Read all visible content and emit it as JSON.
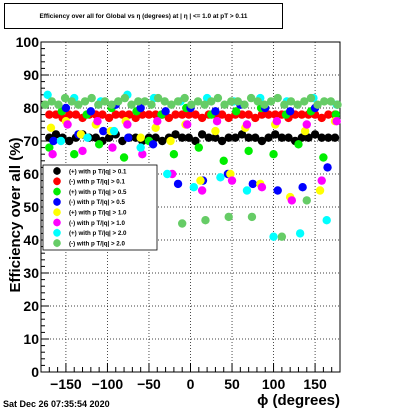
{
  "title": "Efficiency over all for Global vs η (degrees) at | η | <= 1.0 at pT > 0.11",
  "timestamp": "Sat Dec 26 07:35:54 2020",
  "colors": {
    "s1": "#000000",
    "s2": "#ff0000",
    "s3": "#00ee00",
    "s4": "#0000ff",
    "s5": "#ffff00",
    "s6": "#ff00ff",
    "s7": "#00ffff",
    "s8": "#66cc66"
  },
  "chart_data": {
    "type": "scatter",
    "title": "Efficiency over all for Global vs η (degrees) at | η | <= 1.0 at pT > 0.11",
    "xlabel": "ϕ (degrees)",
    "ylabel": "Efficiency over all (%)",
    "xlim": [
      -180,
      180
    ],
    "ylim": [
      0,
      100
    ],
    "xticks": [
      "−150",
      "−100",
      "−50",
      "0",
      "50",
      "100",
      "150"
    ],
    "yticks": [
      "0",
      "10",
      "20",
      "30",
      "40",
      "50",
      "60",
      "70",
      "80",
      "90",
      "100"
    ],
    "grid": true,
    "legend_position": "middle-left",
    "series": [
      {
        "name": "(+) with p T/|q| > 0.1",
        "color": "#000000",
        "x": [
          -170,
          -162,
          -154,
          -146,
          -138,
          -130,
          -122,
          -114,
          -106,
          -98,
          -90,
          -82,
          -74,
          -66,
          -58,
          -50,
          -42,
          -34,
          -26,
          -18,
          -10,
          -2,
          6,
          14,
          22,
          30,
          38,
          46,
          54,
          62,
          70,
          78,
          86,
          94,
          102,
          110,
          118,
          126,
          134,
          142,
          150,
          158,
          166,
          174
        ],
        "y": [
          71,
          72,
          71,
          70,
          71,
          72,
          71,
          71,
          70,
          71,
          72,
          70,
          71,
          71,
          70,
          71,
          71,
          70,
          71,
          72,
          71,
          71,
          70,
          72,
          71,
          71,
          70,
          71,
          71,
          72,
          71,
          71,
          70,
          71,
          72,
          71,
          71,
          70,
          71,
          71,
          72,
          71,
          71,
          71
        ]
      },
      {
        "name": "(-) with p T/|q| > 0.1",
        "color": "#ff0000",
        "x": [
          -170,
          -162,
          -154,
          -146,
          -138,
          -130,
          -122,
          -114,
          -106,
          -98,
          -90,
          -82,
          -74,
          -66,
          -58,
          -50,
          -42,
          -34,
          -26,
          -18,
          -10,
          -2,
          6,
          14,
          22,
          30,
          38,
          46,
          54,
          62,
          70,
          78,
          86,
          94,
          102,
          110,
          118,
          126,
          134,
          142,
          150,
          158,
          166,
          174
        ],
        "y": [
          78,
          78,
          77,
          78,
          78,
          77,
          78,
          78,
          78,
          77,
          78,
          78,
          78,
          77,
          78,
          78,
          78,
          78,
          77,
          78,
          78,
          78,
          78,
          77,
          78,
          78,
          78,
          77,
          78,
          78,
          78,
          77,
          78,
          78,
          78,
          78,
          77,
          78,
          78,
          78,
          78,
          77,
          78,
          78
        ]
      },
      {
        "name": "(+) with p T/|q| > 0.5",
        "color": "#00ee00",
        "x": [
          -170,
          -155,
          -140,
          -125,
          -110,
          -95,
          -80,
          -65,
          -50,
          -35,
          -20,
          -5,
          10,
          25,
          40,
          55,
          70,
          85,
          100,
          115,
          130,
          145,
          160,
          175
        ],
        "y": [
          68,
          79,
          66,
          78,
          69,
          80,
          65,
          79,
          70,
          78,
          66,
          80,
          68,
          78,
          64,
          79,
          67,
          80,
          66,
          78,
          69,
          79,
          65,
          78
        ]
      },
      {
        "name": "(-) with p T/|q| > 0.5",
        "color": "#0000ff",
        "x": [
          -165,
          -150,
          -135,
          -120,
          -105,
          -90,
          -75,
          -60,
          -45,
          -30,
          -15,
          0,
          15,
          30,
          45,
          60,
          75,
          90,
          105,
          120,
          135,
          150,
          165
        ],
        "y": [
          70,
          80,
          72,
          79,
          73,
          81,
          71,
          80,
          69,
          79,
          57,
          80,
          58,
          79,
          60,
          81,
          57,
          80,
          55,
          79,
          56,
          80,
          62
        ]
      },
      {
        "name": "(+) with p T/|q| > 1.0",
        "color": "#ffff00",
        "x": [
          -168,
          -150,
          -132,
          -114,
          -96,
          -78,
          -60,
          -42,
          -24,
          -6,
          12,
          30,
          48,
          66,
          84,
          102,
          120,
          138,
          156,
          174
        ],
        "y": [
          74,
          76,
          72,
          75,
          73,
          76,
          71,
          74,
          70,
          75,
          58,
          73,
          60,
          74,
          57,
          75,
          53,
          73,
          55,
          76
        ]
      },
      {
        "name": "(-) with p T/|q| > 1.0",
        "color": "#ff00ff",
        "x": [
          -166,
          -148,
          -130,
          -112,
          -94,
          -76,
          -58,
          -40,
          -22,
          -4,
          14,
          32,
          50,
          68,
          86,
          104,
          122,
          140,
          158,
          176
        ],
        "y": [
          66,
          75,
          67,
          76,
          68,
          75,
          66,
          76,
          60,
          75,
          55,
          76,
          58,
          75,
          56,
          76,
          52,
          75,
          58,
          76
        ]
      },
      {
        "name": "(+) with p T/|q| > 2.0",
        "color": "#00ffff",
        "x": [
          -172,
          -156,
          -140,
          -124,
          -108,
          -92,
          -76,
          -60,
          -44,
          -28,
          -12,
          4,
          20,
          36,
          52,
          68,
          84,
          100,
          116,
          132,
          148,
          164,
          176
        ],
        "y": [
          84,
          70,
          83,
          71,
          82,
          73,
          84,
          68,
          83,
          60,
          82,
          56,
          83,
          59,
          82,
          55,
          83,
          41,
          82,
          42,
          83,
          46,
          81
        ]
      },
      {
        "name": "(-) with p T/|q| > 2.0",
        "color": "#66cc66",
        "x": [
          -175,
          -167,
          -159,
          -151,
          -143,
          -135,
          -127,
          -119,
          -111,
          -103,
          -95,
          -87,
          -79,
          -71,
          -63,
          -55,
          -47,
          -39,
          -31,
          -23,
          -15,
          -7,
          1,
          9,
          17,
          25,
          33,
          41,
          49,
          57,
          65,
          73,
          81,
          89,
          97,
          105,
          113,
          121,
          129,
          137,
          145,
          153,
          161,
          169,
          177,
          -10,
          18,
          46,
          74,
          110,
          140
        ],
        "y": [
          81,
          82,
          81,
          83,
          82,
          81,
          82,
          83,
          81,
          82,
          81,
          82,
          83,
          81,
          82,
          82,
          81,
          83,
          82,
          81,
          82,
          83,
          81,
          82,
          81,
          82,
          83,
          81,
          82,
          82,
          81,
          83,
          82,
          81,
          82,
          83,
          81,
          82,
          81,
          82,
          83,
          81,
          82,
          82,
          81,
          45,
          46,
          47,
          47,
          41,
          52
        ]
      }
    ]
  }
}
